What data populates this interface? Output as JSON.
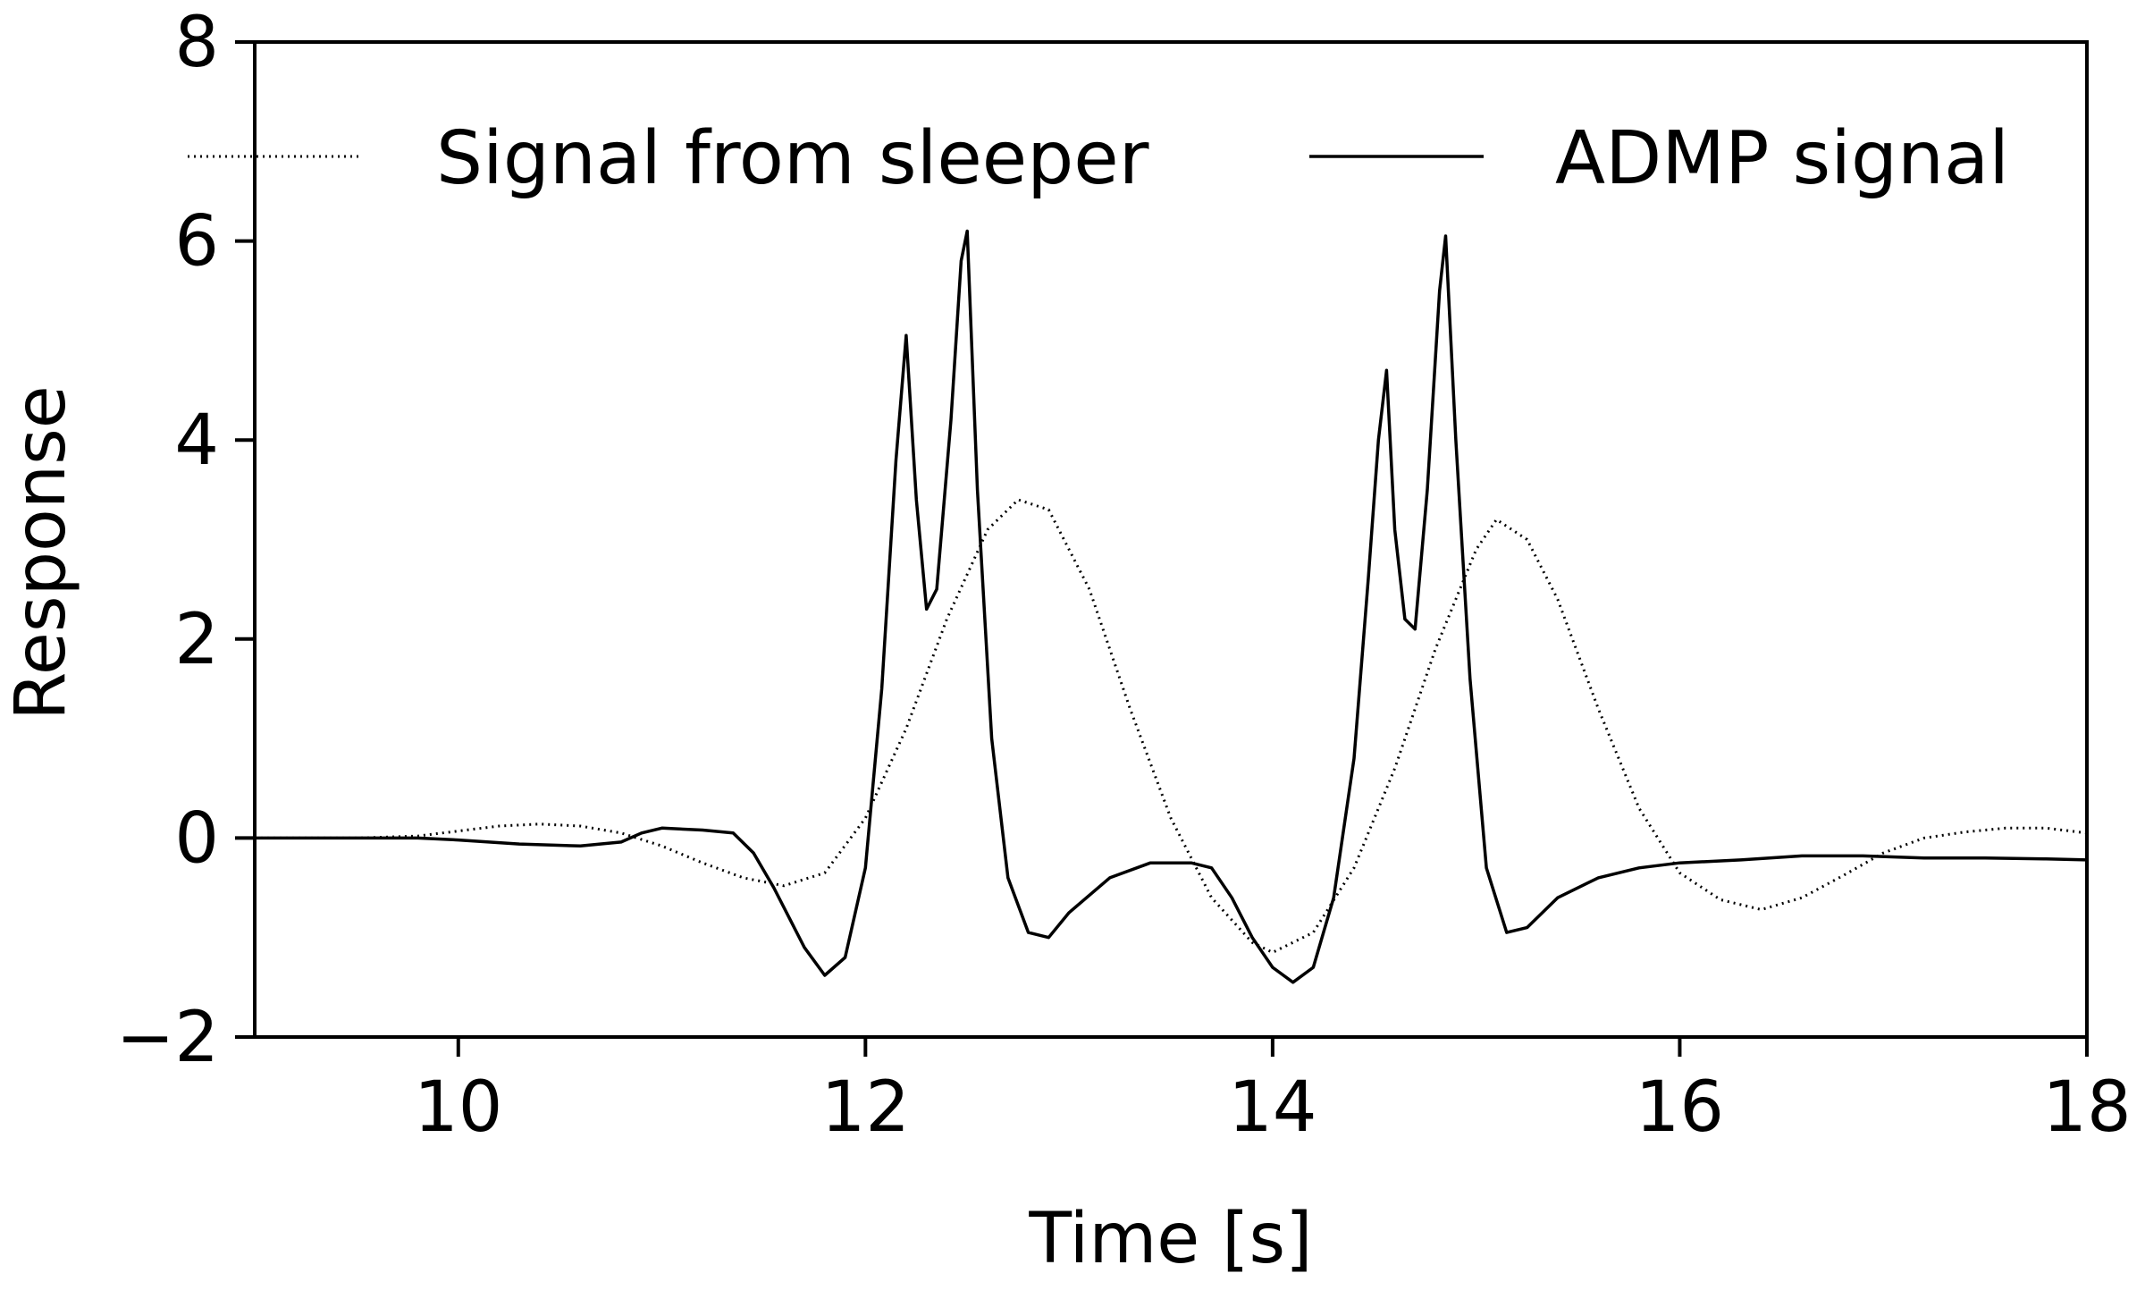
{
  "chart_data": {
    "type": "line",
    "title": "",
    "xlabel": "Time [s]",
    "ylabel": "Response",
    "xlim": [
      9,
      18
    ],
    "ylim": [
      -2,
      8
    ],
    "x_ticks": [
      10,
      12,
      14,
      16,
      18
    ],
    "y_ticks": [
      -2,
      0,
      2,
      4,
      6,
      8
    ],
    "x_tick_labels": [
      "10",
      "12",
      "14",
      "16",
      "18"
    ],
    "y_tick_labels": [
      "−2",
      "0",
      "2",
      "4",
      "6",
      "8"
    ],
    "grid": false,
    "legend_position": "top",
    "series": [
      {
        "name": "Signal from sleeper",
        "style": "dotted",
        "color": "#000000",
        "x": [
          9.0,
          9.5,
          9.8,
          10.0,
          10.2,
          10.4,
          10.6,
          10.8,
          11.0,
          11.2,
          11.4,
          11.6,
          11.8,
          12.0,
          12.2,
          12.4,
          12.6,
          12.75,
          12.9,
          13.1,
          13.3,
          13.5,
          13.7,
          13.9,
          14.0,
          14.2,
          14.4,
          14.6,
          14.8,
          15.0,
          15.1,
          15.25,
          15.4,
          15.6,
          15.8,
          16.0,
          16.2,
          16.4,
          16.6,
          16.8,
          17.0,
          17.2,
          17.4,
          17.6,
          17.8,
          18.0
        ],
        "y": [
          0.0,
          0.0,
          0.02,
          0.07,
          0.12,
          0.14,
          0.12,
          0.05,
          -0.08,
          -0.25,
          -0.4,
          -0.48,
          -0.35,
          0.2,
          1.1,
          2.2,
          3.1,
          3.4,
          3.3,
          2.5,
          1.3,
          0.2,
          -0.6,
          -1.05,
          -1.15,
          -0.95,
          -0.3,
          0.7,
          1.9,
          2.9,
          3.2,
          3.0,
          2.4,
          1.3,
          0.3,
          -0.35,
          -0.62,
          -0.72,
          -0.6,
          -0.38,
          -0.15,
          0.0,
          0.06,
          0.1,
          0.1,
          0.05
        ]
      },
      {
        "name": "ADMP signal",
        "style": "solid",
        "color": "#000000",
        "x": [
          9.0,
          9.5,
          9.8,
          10.0,
          10.3,
          10.6,
          10.8,
          10.9,
          11.0,
          11.2,
          11.35,
          11.45,
          11.55,
          11.7,
          11.8,
          11.9,
          12.0,
          12.08,
          12.15,
          12.2,
          12.25,
          12.3,
          12.35,
          12.42,
          12.47,
          12.5,
          12.55,
          12.62,
          12.7,
          12.8,
          12.9,
          13.0,
          13.2,
          13.4,
          13.6,
          13.7,
          13.8,
          13.9,
          14.0,
          14.1,
          14.2,
          14.3,
          14.4,
          14.47,
          14.52,
          14.56,
          14.6,
          14.65,
          14.7,
          14.76,
          14.82,
          14.85,
          14.9,
          14.97,
          15.05,
          15.15,
          15.25,
          15.4,
          15.6,
          15.8,
          16.0,
          16.3,
          16.6,
          16.9,
          17.2,
          17.5,
          17.8,
          18.0
        ],
        "y": [
          0.0,
          0.0,
          0.0,
          -0.02,
          -0.06,
          -0.08,
          -0.04,
          0.05,
          0.1,
          0.08,
          0.05,
          -0.15,
          -0.5,
          -1.1,
          -1.38,
          -1.2,
          -0.3,
          1.5,
          3.8,
          5.05,
          3.4,
          2.3,
          2.5,
          4.2,
          5.8,
          6.1,
          3.5,
          1.0,
          -0.4,
          -0.95,
          -1.0,
          -0.75,
          -0.4,
          -0.25,
          -0.25,
          -0.3,
          -0.6,
          -1.0,
          -1.3,
          -1.45,
          -1.3,
          -0.6,
          0.8,
          2.6,
          4.0,
          4.7,
          3.1,
          2.2,
          2.1,
          3.5,
          5.5,
          6.05,
          4.0,
          1.6,
          -0.3,
          -0.95,
          -0.9,
          -0.6,
          -0.4,
          -0.3,
          -0.25,
          -0.22,
          -0.18,
          -0.18,
          -0.2,
          -0.2,
          -0.21,
          -0.22
        ]
      }
    ]
  }
}
